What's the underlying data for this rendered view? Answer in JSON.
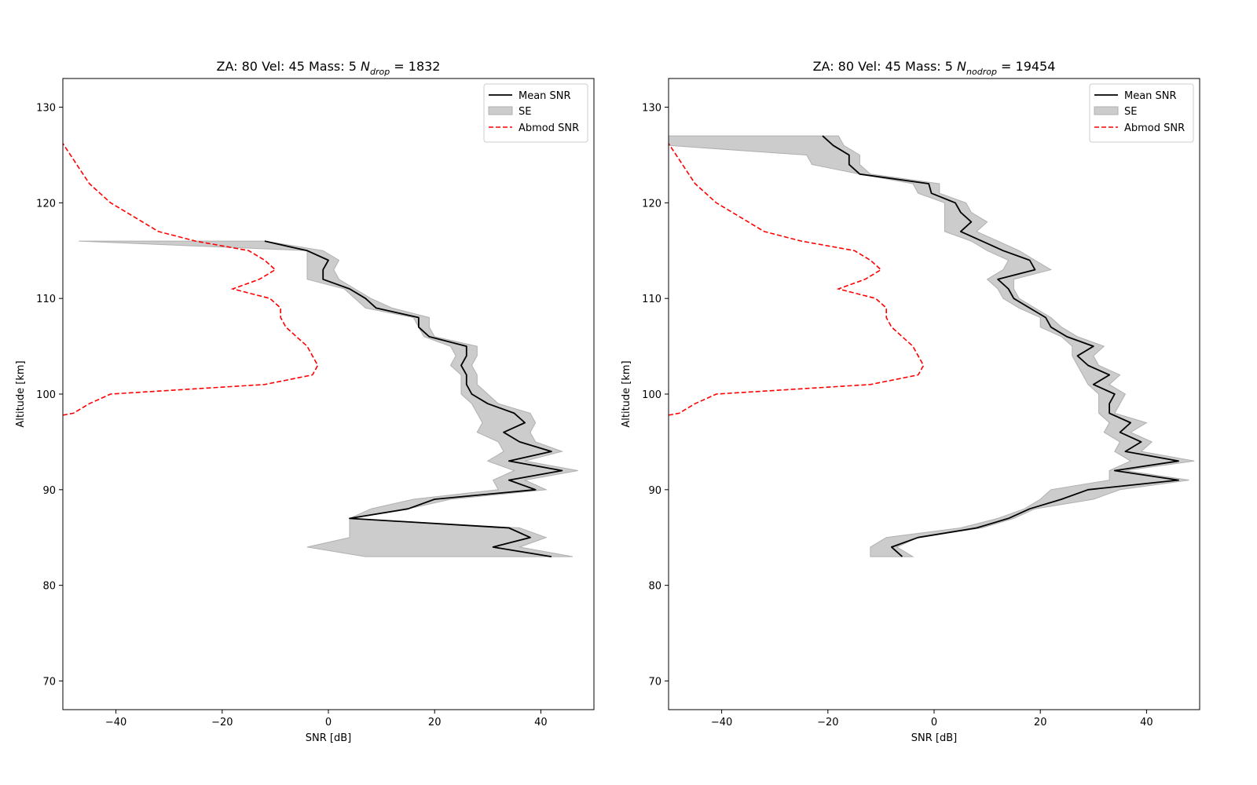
{
  "chart_data": [
    {
      "type": "line",
      "title_prefix": "ZA: 80 Vel: 45 Mass: 5 ",
      "title_symbol": "N",
      "title_subscript": "drop",
      "title_suffix": " = 1832",
      "xlabel": "SNR [dB]",
      "ylabel": "Altitude [km]",
      "xlim": [
        -50,
        50
      ],
      "ylim": [
        67,
        133
      ],
      "xticks": [
        -40,
        -20,
        0,
        20,
        40
      ],
      "xtick_labels": [
        "−40",
        "−20",
        "0",
        "20",
        "40"
      ],
      "yticks": [
        70,
        80,
        90,
        100,
        110,
        120,
        130
      ],
      "ytick_labels": [
        "70",
        "80",
        "90",
        "100",
        "110",
        "120",
        "130"
      ],
      "grid": false,
      "legend_position": "top-right",
      "legend": [
        "Mean SNR",
        "SE",
        "Abmod SNR"
      ],
      "series": [
        {
          "name": "Mean SNR",
          "style": "solid",
          "color": "#000000",
          "points": [
            [
              -12,
              116
            ],
            [
              -4,
              115
            ],
            [
              0,
              114
            ],
            [
              -1,
              113
            ],
            [
              -1,
              112
            ],
            [
              4,
              111
            ],
            [
              7,
              110
            ],
            [
              9,
              109
            ],
            [
              17,
              108
            ],
            [
              17,
              107
            ],
            [
              19,
              106
            ],
            [
              26,
              105
            ],
            [
              26,
              104
            ],
            [
              25,
              103
            ],
            [
              26,
              102
            ],
            [
              26,
              101
            ],
            [
              27,
              100
            ],
            [
              30,
              99
            ],
            [
              35,
              98
            ],
            [
              37,
              97
            ],
            [
              33,
              96
            ],
            [
              36,
              95
            ],
            [
              42,
              94
            ],
            [
              34,
              93
            ],
            [
              44,
              92
            ],
            [
              34,
              91
            ],
            [
              39,
              90
            ],
            [
              20,
              89
            ],
            [
              15,
              88
            ],
            [
              4,
              87
            ],
            [
              34,
              86
            ],
            [
              38,
              85
            ],
            [
              31,
              84
            ],
            [
              42,
              83
            ]
          ]
        },
        {
          "name": "SE",
          "style": "fill",
          "color": "#cccccc",
          "lower": [
            -47,
            -4,
            -4,
            -4,
            -4,
            3,
            5,
            7,
            16,
            17,
            18,
            23,
            24,
            23,
            25,
            25,
            25,
            27,
            28,
            29,
            28,
            32,
            33,
            30,
            35,
            31,
            32,
            16,
            8,
            4,
            4,
            4,
            -4,
            7
          ],
          "upper": [
            -12,
            -1,
            2,
            1,
            2,
            5,
            8,
            12,
            19,
            19,
            20,
            28,
            28,
            27,
            28,
            28,
            30,
            32,
            38,
            39,
            38,
            39,
            44,
            37,
            47,
            37,
            41,
            23,
            15,
            4,
            36,
            41,
            36,
            46
          ]
        },
        {
          "name": "Abmod SNR",
          "style": "dashed",
          "color": "#ff0000",
          "points": [
            [
              -50,
              97.8
            ],
            [
              -48,
              98
            ],
            [
              -45,
              99
            ],
            [
              -41,
              100
            ],
            [
              -12,
              101
            ],
            [
              -3,
              102
            ],
            [
              -2,
              103
            ],
            [
              -3,
              104
            ],
            [
              -4,
              105
            ],
            [
              -6,
              106
            ],
            [
              -8,
              107
            ],
            [
              -9,
              108
            ],
            [
              -9,
              109
            ],
            [
              -11,
              110
            ],
            [
              -18,
              111
            ],
            [
              -13,
              112
            ],
            [
              -10,
              113
            ],
            [
              -12,
              114
            ],
            [
              -15,
              115
            ],
            [
              -25,
              116
            ],
            [
              -32,
              117
            ],
            [
              -35,
              118
            ],
            [
              -38,
              119
            ],
            [
              -41,
              120
            ],
            [
              -45,
              122
            ],
            [
              -50,
              126.2
            ]
          ]
        }
      ]
    },
    {
      "type": "line",
      "title_prefix": "ZA: 80 Vel: 45 Mass: 5 ",
      "title_symbol": "N",
      "title_subscript": "nodrop",
      "title_suffix": " = 19454",
      "xlabel": "SNR [dB]",
      "ylabel": "Altitude [km]",
      "xlim": [
        -50,
        50
      ],
      "ylim": [
        67,
        133
      ],
      "xticks": [
        -40,
        -20,
        0,
        20,
        40
      ],
      "xtick_labels": [
        "−40",
        "−20",
        "0",
        "20",
        "40"
      ],
      "yticks": [
        70,
        80,
        90,
        100,
        110,
        120,
        130
      ],
      "ytick_labels": [
        "70",
        "80",
        "90",
        "100",
        "110",
        "120",
        "130"
      ],
      "grid": false,
      "legend_position": "top-right",
      "legend": [
        "Mean SNR",
        "SE",
        "Abmod SNR"
      ],
      "series": [
        {
          "name": "Mean SNR",
          "style": "solid",
          "color": "#000000",
          "points": [
            [
              -21,
              127
            ],
            [
              -19,
              126
            ],
            [
              -16,
              125
            ],
            [
              -16,
              124
            ],
            [
              -14,
              123
            ],
            [
              -1,
              122
            ],
            [
              -0.5,
              121
            ],
            [
              4,
              120
            ],
            [
              5,
              119
            ],
            [
              7,
              118
            ],
            [
              5,
              117
            ],
            [
              9,
              116
            ],
            [
              13,
              115
            ],
            [
              18,
              114
            ],
            [
              19,
              113
            ],
            [
              12,
              112
            ],
            [
              14,
              111
            ],
            [
              15,
              110
            ],
            [
              18,
              109
            ],
            [
              21,
              108
            ],
            [
              22,
              107
            ],
            [
              25,
              106
            ],
            [
              30,
              105
            ],
            [
              27,
              104
            ],
            [
              29,
              103
            ],
            [
              33,
              102
            ],
            [
              30,
              101
            ],
            [
              34,
              100
            ],
            [
              33,
              99
            ],
            [
              33,
              98
            ],
            [
              37,
              97
            ],
            [
              35,
              96
            ],
            [
              39,
              95
            ],
            [
              36,
              94
            ],
            [
              46,
              93
            ],
            [
              34,
              92
            ],
            [
              46,
              91
            ],
            [
              29,
              90
            ],
            [
              24,
              89
            ],
            [
              18,
              88
            ],
            [
              14,
              87
            ],
            [
              8,
              86
            ],
            [
              -3,
              85
            ],
            [
              -8,
              84
            ],
            [
              -6,
              83
            ]
          ]
        },
        {
          "name": "SE",
          "style": "fill",
          "color": "#cccccc",
          "lower": [
            -50,
            -50,
            -24,
            -23,
            -14,
            -4,
            -3,
            2,
            2,
            2,
            2,
            7,
            10,
            14,
            13,
            10,
            12,
            13,
            16,
            20,
            20,
            24,
            26,
            26,
            27,
            28,
            29,
            31,
            31,
            31,
            33,
            32,
            35,
            34,
            37,
            33,
            33,
            22,
            20,
            17,
            12,
            5,
            -9,
            -12,
            -12
          ],
          "upper": [
            -18,
            -17,
            -14,
            -14,
            -12,
            1,
            1,
            6,
            7,
            10,
            8,
            12,
            16,
            19,
            22,
            15,
            15,
            16,
            19,
            22,
            24,
            27,
            32,
            30,
            31,
            35,
            33,
            36,
            35,
            34,
            40,
            37,
            41,
            39,
            49,
            36,
            48,
            35,
            30,
            19,
            15,
            9,
            -3,
            -7,
            -4
          ]
        },
        {
          "name": "Abmod SNR",
          "style": "dashed",
          "color": "#ff0000",
          "points": [
            [
              -50,
              97.8
            ],
            [
              -48,
              98
            ],
            [
              -45,
              99
            ],
            [
              -41,
              100
            ],
            [
              -12,
              101
            ],
            [
              -3,
              102
            ],
            [
              -2,
              103
            ],
            [
              -3,
              104
            ],
            [
              -4,
              105
            ],
            [
              -6,
              106
            ],
            [
              -8,
              107
            ],
            [
              -9,
              108
            ],
            [
              -9,
              109
            ],
            [
              -11,
              110
            ],
            [
              -18,
              111
            ],
            [
              -13,
              112
            ],
            [
              -10,
              113
            ],
            [
              -12,
              114
            ],
            [
              -15,
              115
            ],
            [
              -25,
              116
            ],
            [
              -32,
              117
            ],
            [
              -35,
              118
            ],
            [
              -38,
              119
            ],
            [
              -41,
              120
            ],
            [
              -45,
              122
            ],
            [
              -50,
              126.2
            ]
          ]
        }
      ]
    }
  ]
}
